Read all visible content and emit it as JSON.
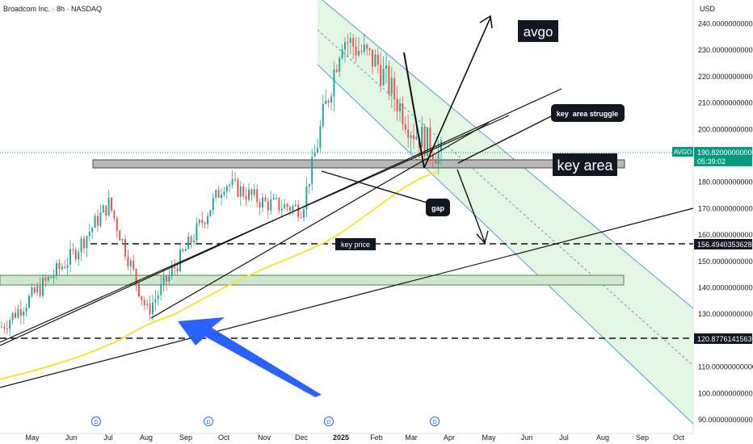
{
  "header": {
    "title": "Broadcom Inc. · 8h · NASDAQ"
  },
  "price_axis": {
    "currency": "USD"
  },
  "price_tag": {
    "symbol": "AVGO",
    "price": "190.82000000000",
    "countdown": "05:39:02"
  },
  "level_tags": [
    "156.49403536289",
    "120.87761415636"
  ],
  "event_marker": "D",
  "annotations": {
    "avgo": "avgo",
    "key_area_struggle": "key  area struggle",
    "key_area": "key area",
    "gap": "gap",
    "key_price": "key price"
  },
  "colors": {
    "up": "#26a69a",
    "down": "#ef5350",
    "ma": "#f5e53b",
    "channel_fill": "#d9f2d9",
    "channel_edge": "#5b9bd5",
    "zone_fill": "#cfe8cf",
    "key_area_fill": "#b8b8b8",
    "arrow": "#2962ff",
    "price_tag": "#089981"
  },
  "chart_data": {
    "type": "candlestick",
    "title": "Broadcom Inc. · 8h · NASDAQ",
    "y_unit": "USD",
    "ylim": [
      88,
      253
    ],
    "y_ticks": [
      "90.000000000000",
      "100.000000000000",
      "110.000000000000",
      "120.000000000000",
      "130.000000000000",
      "140.000000000000",
      "150.000000000000",
      "160.000000000000",
      "170.000000000000",
      "180.000000000000",
      "190.000000000000",
      "200.000000000000",
      "210.000000000000",
      "220.000000000000",
      "230.000000000000",
      "240.000000000000"
    ],
    "x_ticks": [
      "May",
      "Jun",
      "Jul",
      "Aug",
      "Sep",
      "Oct",
      "Nov",
      "Dec",
      "2025",
      "Feb",
      "Mar",
      "Apr",
      "May",
      "Jun",
      "Jul",
      "Aug",
      "Sep",
      "Oct"
    ],
    "last_price": 190.82,
    "levels": [
      156.49403536289,
      120.87761415636
    ],
    "key_area": [
      184,
      186
    ],
    "support_zone": [
      140.5,
      144
    ],
    "waypoints": [
      [
        "May",
        125
      ],
      [
        "Jun",
        152
      ],
      [
        "Jul",
        172
      ],
      [
        "Aug",
        131
      ],
      [
        "Sep",
        155
      ],
      [
        "Oct",
        180
      ],
      [
        "Nov",
        172
      ],
      [
        "Dec",
        170
      ],
      [
        "2025",
        235
      ],
      [
        "Feb",
        225
      ],
      [
        "Mar",
        200
      ],
      [
        "Apr",
        190
      ]
    ],
    "grid": false
  }
}
